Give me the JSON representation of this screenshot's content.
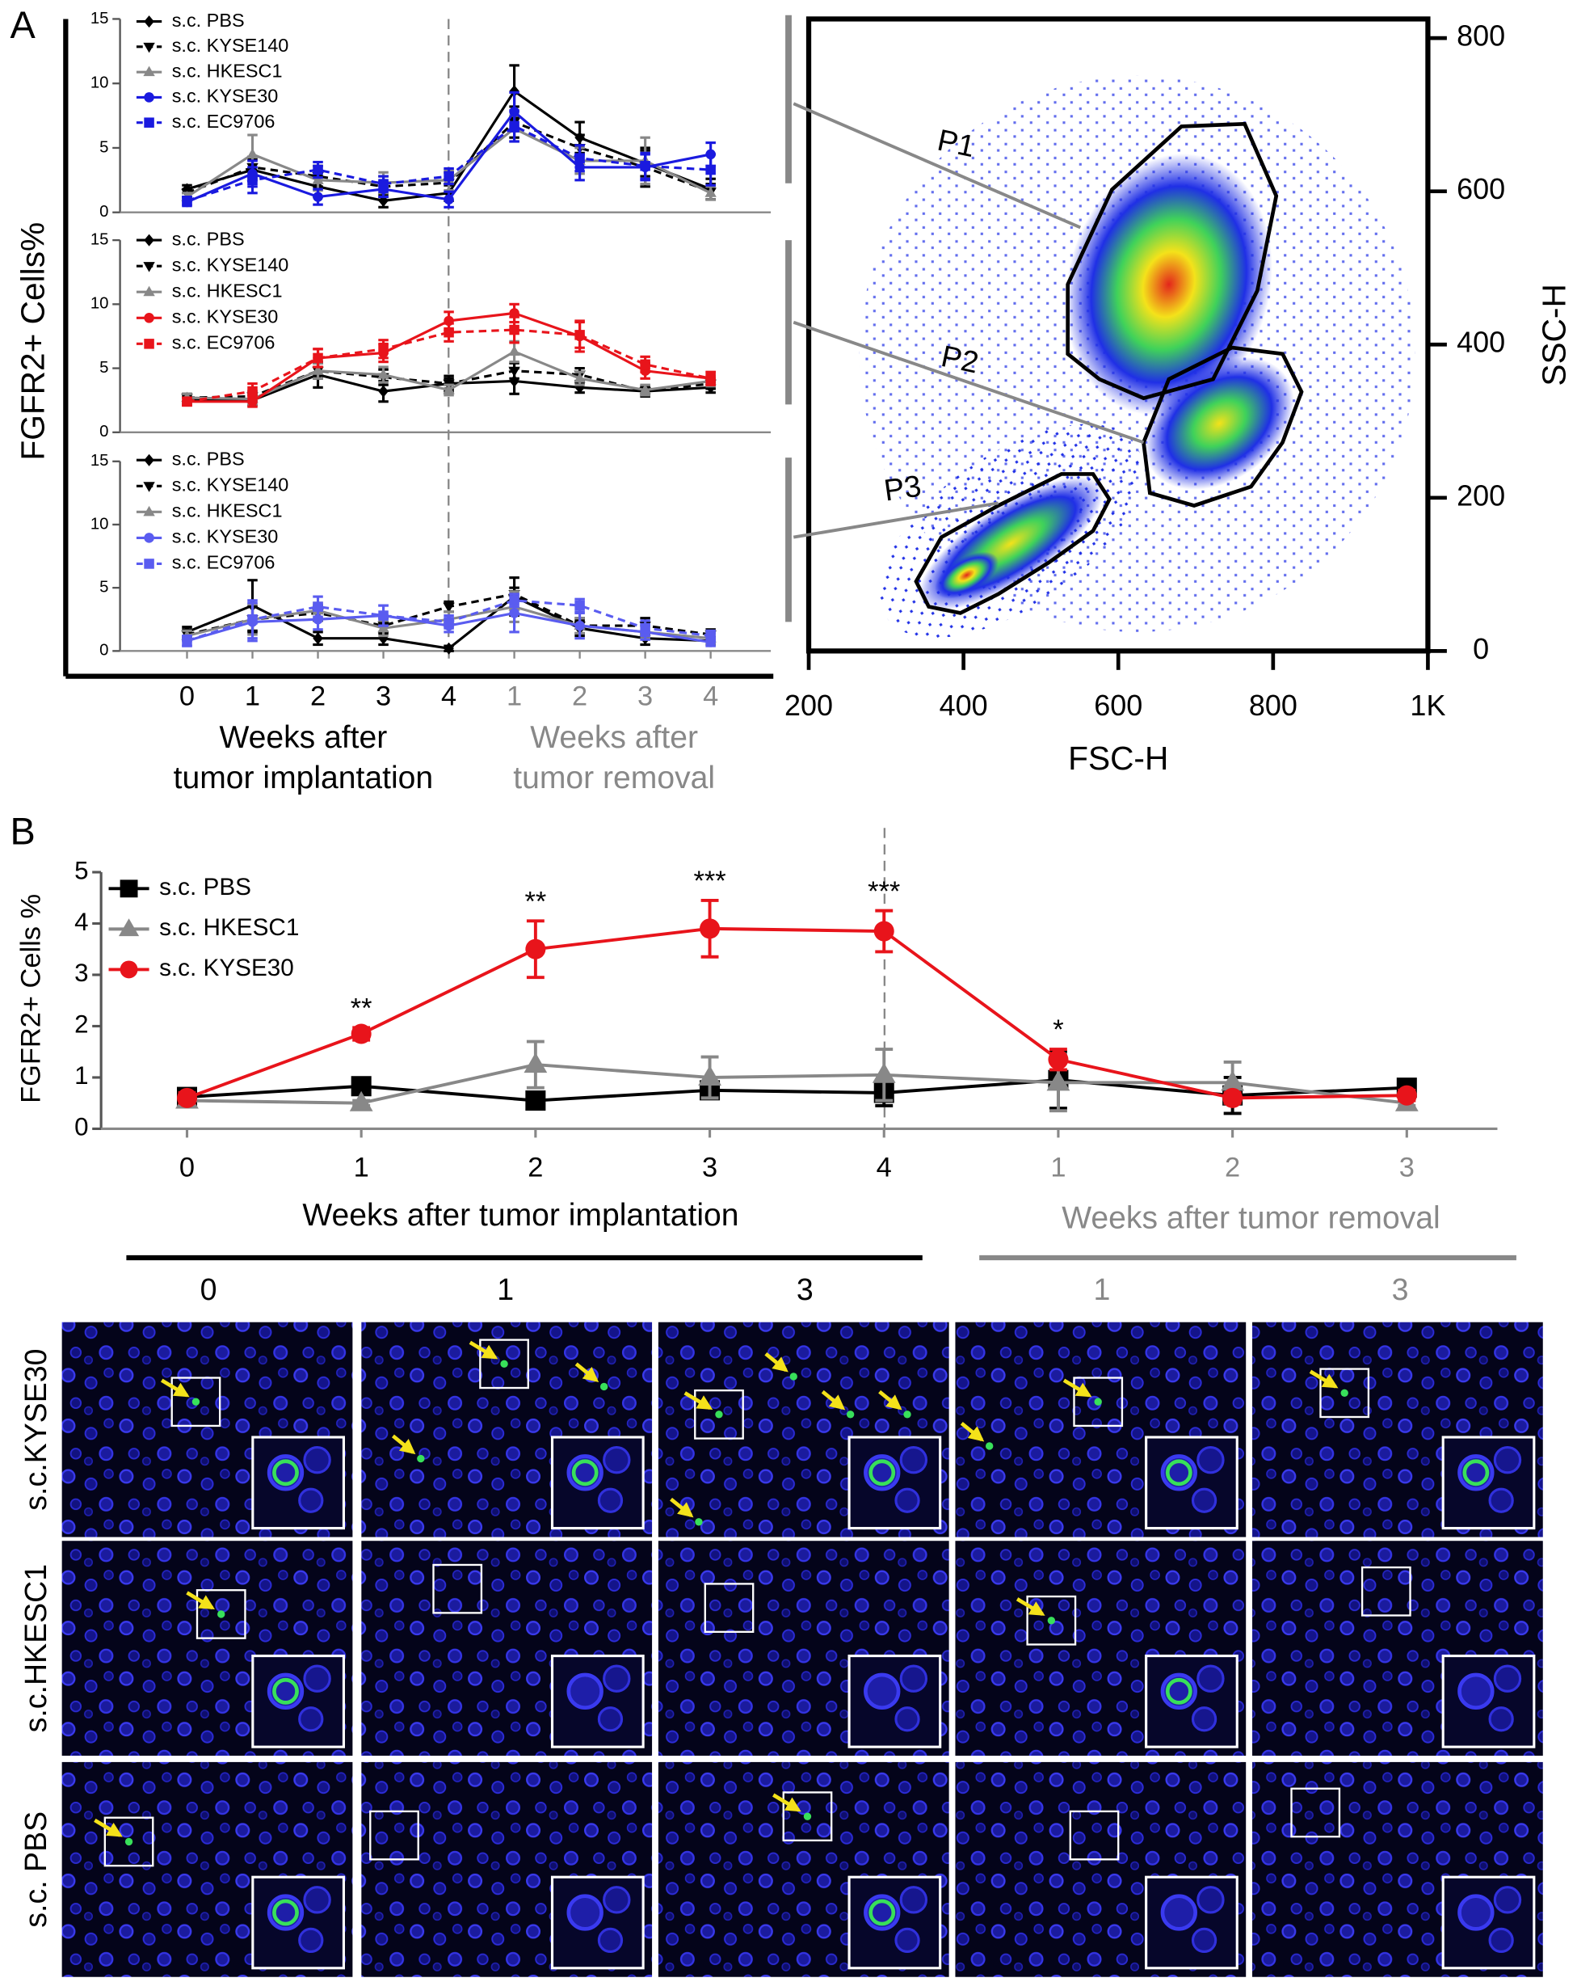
{
  "panel_labels": [
    "A",
    "B"
  ],
  "chart_data": [
    {
      "type": "line",
      "ylabel": "FGFR2+ Cells%",
      "ylim": [
        0,
        15
      ],
      "yticks": [
        0,
        5,
        10,
        15
      ],
      "series": [
        {
          "name": "s.c. PBS",
          "color": "#000000",
          "marker": "diamond",
          "dash": false,
          "values": [
            1.8,
            3.3,
            2.0,
            0.9,
            1.5,
            9.4,
            5.8,
            3.8,
            1.8
          ],
          "errors": [
            0.3,
            0.8,
            0.8,
            0.5,
            0.6,
            2.0,
            1.2,
            1.0,
            0.8
          ]
        },
        {
          "name": "s.c. KYSE140",
          "color": "#000000",
          "marker": "triangle-down",
          "dash": true,
          "values": [
            1.5,
            3.5,
            2.8,
            2.0,
            2.3,
            7.0,
            5.0,
            3.5,
            1.6
          ],
          "errors": [
            0.3,
            0.8,
            0.8,
            0.8,
            0.8,
            1.2,
            1.0,
            1.5,
            0.6
          ]
        },
        {
          "name": "s.c. HKESC1",
          "color": "#888888",
          "marker": "triangle",
          "dash": false,
          "values": [
            1.2,
            4.5,
            2.5,
            2.3,
            2.5,
            6.5,
            4.0,
            4.0,
            1.5
          ],
          "errors": [
            0.3,
            1.5,
            0.8,
            0.8,
            0.8,
            1.0,
            1.0,
            1.8,
            0.5
          ]
        },
        {
          "name": "s.c. KYSE30",
          "color": "#1a1adf",
          "marker": "circle",
          "dash": false,
          "values": [
            0.8,
            3.0,
            1.2,
            1.8,
            1.0,
            7.8,
            3.5,
            3.5,
            4.5
          ],
          "errors": [
            0.3,
            1.0,
            0.6,
            0.6,
            0.6,
            1.5,
            1.0,
            1.0,
            0.9
          ]
        },
        {
          "name": "s.c. EC9706",
          "color": "#1a1adf",
          "marker": "square",
          "dash": true,
          "values": [
            0.9,
            2.5,
            3.3,
            2.2,
            2.8,
            6.7,
            4.2,
            3.6,
            3.3
          ],
          "errors": [
            0.3,
            1.0,
            0.6,
            0.6,
            0.6,
            1.2,
            1.0,
            1.0,
            1.2
          ]
        }
      ]
    },
    {
      "type": "line",
      "ylim": [
        0,
        15
      ],
      "yticks": [
        0,
        5,
        10,
        15
      ],
      "series": [
        {
          "name": "s.c. PBS",
          "color": "#000000",
          "marker": "diamond",
          "dash": false,
          "values": [
            2.5,
            2.5,
            4.5,
            3.2,
            3.8,
            4.0,
            3.5,
            3.2,
            3.5
          ],
          "errors": [
            0.3,
            0.4,
            1.0,
            0.8,
            0.6,
            1.0,
            0.4,
            0.3,
            0.4
          ]
        },
        {
          "name": "s.c. KYSE140",
          "color": "#000000",
          "marker": "triangle-down",
          "dash": true,
          "values": [
            2.7,
            2.8,
            4.8,
            4.3,
            3.8,
            4.8,
            4.5,
            3.2,
            3.8
          ],
          "errors": [
            0.3,
            0.4,
            0.6,
            0.6,
            0.4,
            0.6,
            0.5,
            0.4,
            0.4
          ]
        },
        {
          "name": "s.c. HKESC1",
          "color": "#888888",
          "marker": "triangle",
          "dash": false,
          "values": [
            2.7,
            2.6,
            4.8,
            4.5,
            3.3,
            6.3,
            4.2,
            3.3,
            4.0
          ],
          "errors": [
            0.3,
            0.4,
            0.6,
            0.6,
            0.4,
            0.8,
            0.5,
            0.4,
            0.4
          ]
        },
        {
          "name": "s.c. KYSE30",
          "color": "#e8141b",
          "marker": "circle",
          "dash": false,
          "values": [
            2.4,
            2.4,
            5.8,
            6.2,
            8.7,
            9.3,
            7.5,
            4.8,
            4.2
          ],
          "errors": [
            0.3,
            0.4,
            0.7,
            0.7,
            0.7,
            0.7,
            1.2,
            0.6,
            0.5
          ]
        },
        {
          "name": "s.c. EC9706",
          "color": "#e8141b",
          "marker": "square",
          "dash": true,
          "values": [
            2.4,
            3.2,
            5.8,
            6.5,
            7.8,
            8.0,
            7.6,
            5.3,
            4.2
          ],
          "errors": [
            0.3,
            0.6,
            0.7,
            0.7,
            0.7,
            1.0,
            1.0,
            0.6,
            0.5
          ]
        }
      ]
    },
    {
      "type": "line",
      "ylim": [
        0,
        15
      ],
      "yticks": [
        0,
        5,
        10,
        15
      ],
      "categories": [
        "0",
        "1",
        "2",
        "3",
        "4",
        "1",
        "2",
        "3",
        "4"
      ],
      "category_colors": [
        "#000000",
        "#000000",
        "#000000",
        "#000000",
        "#000000",
        "#888888",
        "#888888",
        "#888888",
        "#888888"
      ],
      "xlabel": [
        "Weeks after",
        "tumor implantation"
      ],
      "xlabel_color": "#000000",
      "xlabel2": [
        "Weeks after",
        "tumor removal"
      ],
      "xlabel2_color": "#888888",
      "series": [
        {
          "name": "s.c. PBS",
          "color": "#000000",
          "marker": "diamond",
          "dash": false,
          "values": [
            1.5,
            3.6,
            1.0,
            1.0,
            0.2,
            4.3,
            1.8,
            1.0,
            0.8
          ],
          "errors": [
            0.4,
            2.0,
            0.5,
            0.5,
            0.2,
            1.5,
            0.6,
            0.5,
            0.3
          ]
        },
        {
          "name": "s.c. KYSE140",
          "color": "#000000",
          "marker": "triangle-down",
          "dash": true,
          "values": [
            1.3,
            2.5,
            3.0,
            2.0,
            3.5,
            4.5,
            2.0,
            2.0,
            1.3
          ],
          "errors": [
            0.4,
            1.0,
            0.6,
            0.6,
            0.4,
            0.5,
            0.6,
            0.6,
            0.4
          ]
        },
        {
          "name": "s.c. HKESC1",
          "color": "#888888",
          "marker": "triangle",
          "dash": false,
          "values": [
            1.2,
            2.5,
            3.2,
            1.8,
            2.5,
            3.5,
            2.0,
            1.5,
            1.0
          ],
          "errors": [
            0.4,
            1.2,
            0.6,
            0.6,
            0.6,
            1.2,
            0.6,
            0.5,
            0.4
          ]
        },
        {
          "name": "s.c. KYSE30",
          "color": "#5a5cf0",
          "marker": "circle",
          "dash": false,
          "values": [
            0.8,
            2.3,
            2.5,
            2.8,
            2.0,
            3.0,
            2.0,
            1.5,
            0.7
          ],
          "errors": [
            0.4,
            1.5,
            0.8,
            0.8,
            0.5,
            1.5,
            1.0,
            0.6,
            0.3
          ]
        },
        {
          "name": "s.c. EC9706",
          "color": "#5a5cf0",
          "marker": "square",
          "dash": true,
          "values": [
            0.8,
            2.5,
            3.5,
            2.8,
            2.3,
            4.0,
            3.6,
            1.8,
            1.2
          ],
          "errors": [
            0.4,
            1.5,
            0.8,
            0.8,
            0.5,
            0.5,
            0.5,
            0.6,
            0.4
          ]
        }
      ]
    },
    {
      "type": "density",
      "xlabel": "FSC-H",
      "ylabel": "SSC-H",
      "xlim": [
        200,
        1000
      ],
      "ylim": [
        0,
        825
      ],
      "xticks": [
        200,
        400,
        600,
        800,
        {
          "value": 1000,
          "label": "1K"
        }
      ],
      "yticks": [
        0,
        200,
        400,
        600,
        800
      ],
      "gates": [
        "P1",
        "P2",
        "P3"
      ]
    },
    {
      "type": "line",
      "ylabel": "FGFR2+ Cells %",
      "ylim": [
        0,
        5
      ],
      "yticks": [
        0,
        1,
        2,
        3,
        4,
        5
      ],
      "categories": [
        "0",
        "1",
        "2",
        "3",
        "4",
        "1",
        "2",
        "3"
      ],
      "category_colors": [
        "#000000",
        "#000000",
        "#000000",
        "#000000",
        "#000000",
        "#888888",
        "#888888",
        "#888888"
      ],
      "xlabel": "Weeks after tumor implantation",
      "xlabel_color": "#000000",
      "xlabel2": "Weeks after tumor removal",
      "xlabel2_color": "#888888",
      "significance": [
        null,
        "**",
        "**",
        "***",
        "***",
        "*",
        null,
        null
      ],
      "series": [
        {
          "name": "s.c. PBS",
          "color": "#000000",
          "marker": "square",
          "dash": false,
          "values": [
            0.62,
            0.83,
            0.55,
            0.75,
            0.7,
            0.95,
            0.65,
            0.8
          ],
          "errors": [
            0.1,
            0.05,
            0.05,
            0.15,
            0.25,
            0.55,
            0.35,
            0.1
          ]
        },
        {
          "name": "s.c. HKESC1",
          "color": "#888888",
          "marker": "triangle",
          "dash": false,
          "values": [
            0.55,
            0.5,
            1.25,
            1.0,
            1.05,
            0.9,
            0.9,
            0.5
          ],
          "errors": [
            0.05,
            0.05,
            0.45,
            0.4,
            0.5,
            0.55,
            0.4,
            0.05
          ]
        },
        {
          "name": "s.c. KYSE30",
          "color": "#e8141b",
          "marker": "circle",
          "dash": false,
          "values": [
            0.6,
            1.85,
            3.5,
            3.9,
            3.85,
            1.35,
            0.6,
            0.65
          ],
          "errors": [
            0.1,
            0.12,
            0.55,
            0.55,
            0.4,
            0.2,
            0.1,
            0.1
          ]
        }
      ]
    }
  ],
  "micrographs": {
    "columns": [
      "0",
      "1",
      "3",
      "1",
      "3"
    ],
    "column_colors": [
      "#000000",
      "#000000",
      "#000000",
      "#888888",
      "#888888"
    ],
    "rows": [
      "s.c.KYSE30",
      "s.c.HKESC1",
      "s.c. PBS"
    ]
  }
}
